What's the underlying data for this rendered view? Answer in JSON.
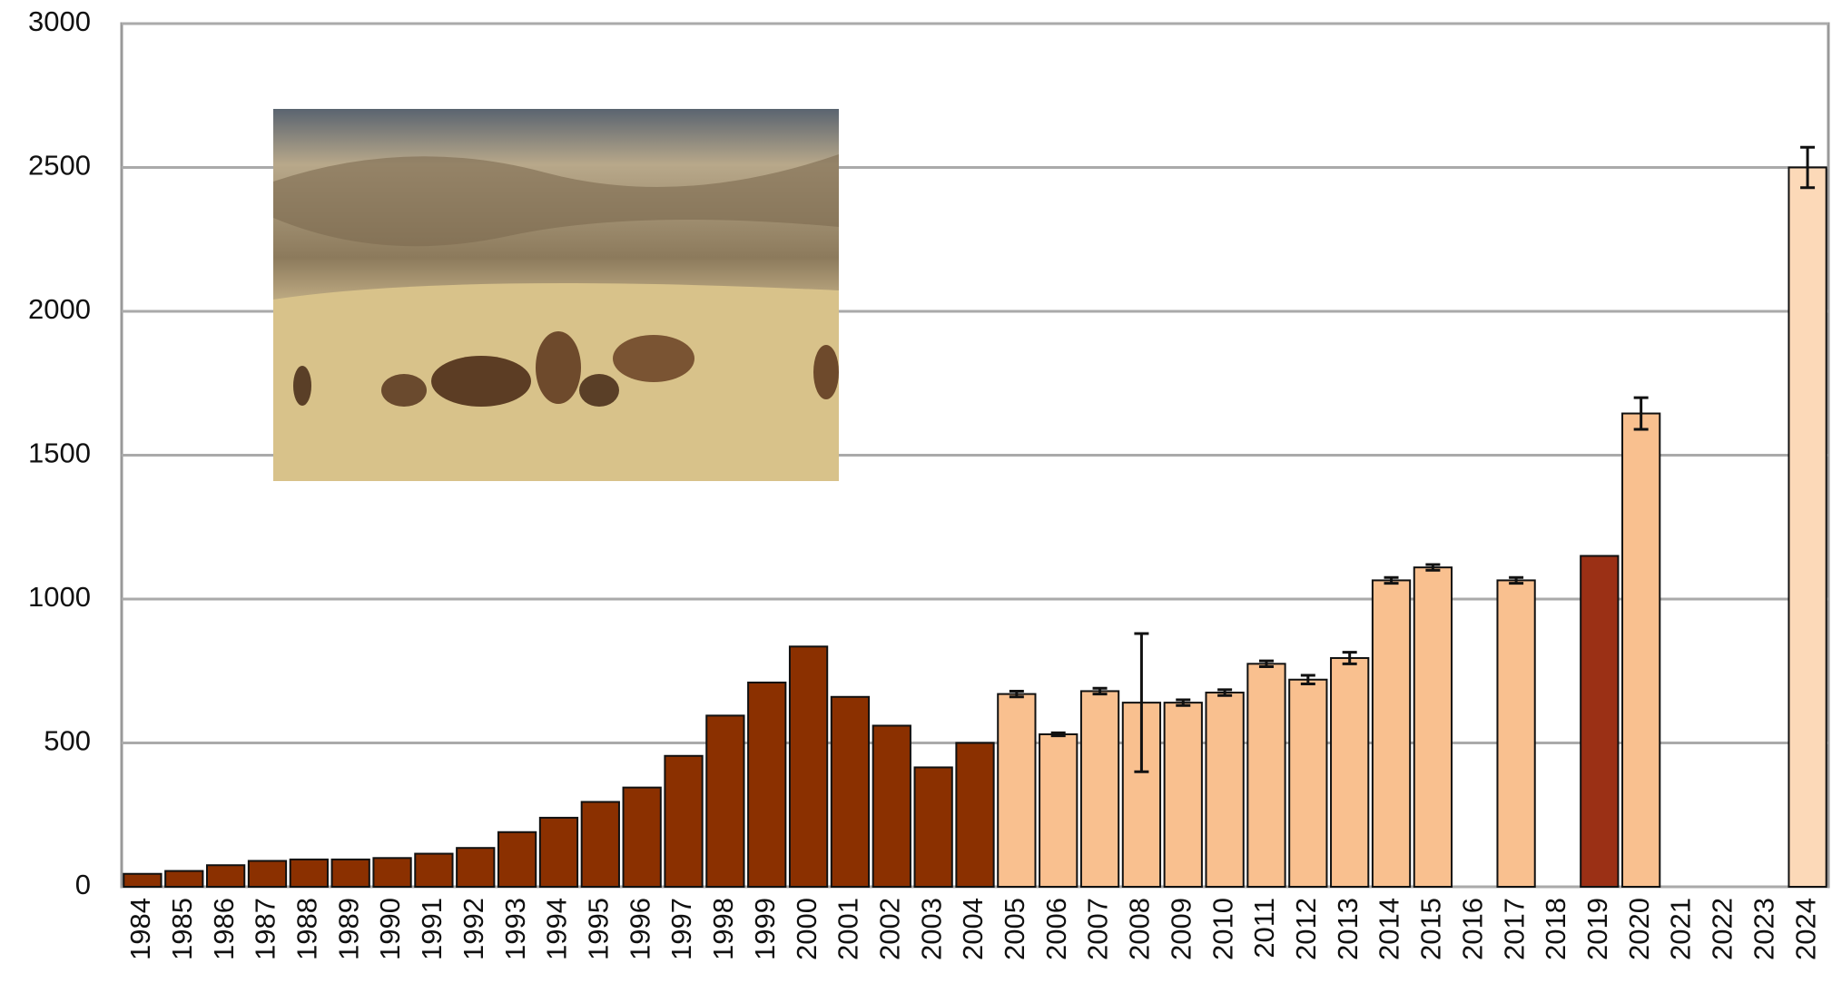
{
  "chart_data": {
    "type": "bar",
    "categories": [
      "1984",
      "1985",
      "1986",
      "1987",
      "1988",
      "1989",
      "1990",
      "1991",
      "1992",
      "1993",
      "1994",
      "1995",
      "1996",
      "1997",
      "1998",
      "1999",
      "2000",
      "2001",
      "2002",
      "2003",
      "2004",
      "2005",
      "2006",
      "2007",
      "2008",
      "2009",
      "2010",
      "2011",
      "2012",
      "2013",
      "2014",
      "2015",
      "2016",
      "2017",
      "2018",
      "2019",
      "2020",
      "2021",
      "2022",
      "2023",
      "2024"
    ],
    "values": [
      45,
      55,
      75,
      90,
      95,
      95,
      100,
      115,
      135,
      190,
      240,
      295,
      345,
      455,
      595,
      710,
      835,
      660,
      560,
      415,
      500,
      670,
      530,
      680,
      640,
      640,
      675,
      775,
      720,
      795,
      1065,
      1110,
      null,
      1065,
      null,
      1150,
      1645,
      null,
      null,
      null,
      2500
    ],
    "errors": [
      null,
      null,
      null,
      null,
      null,
      null,
      null,
      null,
      null,
      null,
      null,
      null,
      null,
      null,
      null,
      null,
      null,
      null,
      null,
      null,
      null,
      10,
      5,
      10,
      240,
      10,
      10,
      10,
      15,
      20,
      10,
      10,
      null,
      10,
      null,
      null,
      55,
      null,
      null,
      null,
      70
    ],
    "colors": [
      "#8b3000",
      "#8b3000",
      "#8b3000",
      "#8b3000",
      "#8b3000",
      "#8b3000",
      "#8b3000",
      "#8b3000",
      "#8b3000",
      "#8b3000",
      "#8b3000",
      "#8b3000",
      "#8b3000",
      "#8b3000",
      "#8b3000",
      "#8b3000",
      "#8b3000",
      "#8b3000",
      "#8b3000",
      "#8b3000",
      "#8b3000",
      "#f9c08f",
      "#f9c08f",
      "#f9c08f",
      "#f9c08f",
      "#f9c08f",
      "#f9c08f",
      "#f9c08f",
      "#f9c08f",
      "#f9c08f",
      "#f9c08f",
      "#f9c08f",
      "#f9c08f",
      "#f9c08f",
      "#f9c08f",
      "#9b3015",
      "#f9c08f",
      "#f9c08f",
      "#f9c08f",
      "#f9c08f",
      "#fcd9b8"
    ],
    "ylim": [
      0,
      3000
    ],
    "yticks": [
      0,
      500,
      1000,
      1500,
      2000,
      2500,
      3000
    ],
    "grid": true
  }
}
